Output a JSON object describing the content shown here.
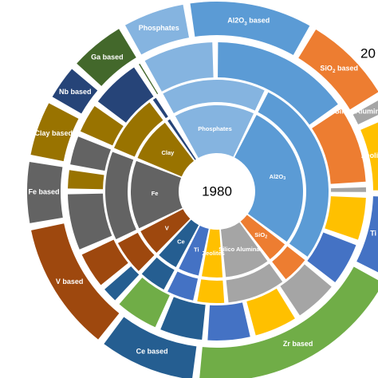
{
  "chart_data": {
    "type": "sunburst",
    "center_label": "1980",
    "partial_label": "20",
    "rings": [
      {
        "ring": "inner",
        "year": "1980",
        "segments": [
          {
            "label": "Phosphates",
            "value": 14.0,
            "color": "#85B4E0"
          },
          {
            "label": "Al2O3",
            "value": 25.0,
            "color": "#5B9BD5"
          },
          {
            "label": "SiO2",
            "value": 4.0,
            "color": "#ED7D31"
          },
          {
            "label": "Silico Alumina",
            "value": 8.0,
            "color": "#A5A5A5"
          },
          {
            "label": "Zeolites",
            "value": 4.0,
            "color": "#FFC000"
          },
          {
            "label": "Ti",
            "value": 4.0,
            "color": "#4472C4"
          },
          {
            "label": "Ce",
            "value": 4.0,
            "color": "#255E91"
          },
          {
            "label": "V",
            "value": 5.0,
            "color": "#9E480E"
          },
          {
            "label": "Fe",
            "value": 12.0,
            "color": "#636363"
          },
          {
            "label": "Clay",
            "value": 8.0,
            "color": "#997300"
          },
          {
            "label": "",
            "value": 1.0,
            "color": "#264478"
          },
          {
            "label": "",
            "value": 0.5,
            "color": "#43682B"
          }
        ]
      },
      {
        "ring": "middle",
        "segments": [
          {
            "label": "",
            "value": 14.0,
            "color": "#85B4E0"
          },
          {
            "label": "",
            "value": 25.0,
            "color": "#5B9BD5"
          },
          {
            "label": "",
            "value": 4.0,
            "color": "#ED7D31"
          },
          {
            "label": "",
            "value": 8.0,
            "color": "#A5A5A5"
          },
          {
            "label": "",
            "value": 4.0,
            "color": "#FFC000"
          },
          {
            "label": "",
            "value": 4.0,
            "color": "#4472C4"
          },
          {
            "label": "",
            "value": 4.0,
            "color": "#255E91"
          },
          {
            "label": "",
            "value": 5.0,
            "color": "#9E480E"
          },
          {
            "label": "",
            "value": 12.0,
            "color": "#636363"
          },
          {
            "label": "",
            "value": 8.0,
            "color": "#997300"
          },
          {
            "label": "",
            "value": 1.0,
            "color": "#264478"
          },
          {
            "label": "",
            "value": 0.5,
            "color": "#43682B"
          }
        ]
      },
      {
        "ring": "third",
        "segments": [
          {
            "label": "",
            "value": 11.0,
            "color": "#85B4E0"
          },
          {
            "label": "",
            "value": 21.0,
            "color": "#5B9BD5"
          },
          {
            "label": "",
            "value": 12.0,
            "color": "#ED7D31"
          },
          {
            "label": "",
            "value": 1.5,
            "color": "#A5A5A5"
          },
          {
            "label": "",
            "value": 7.0,
            "color": "#FFC000"
          },
          {
            "label": "",
            "value": 7.0,
            "color": "#4472C4"
          },
          {
            "label": "",
            "value": 7.0,
            "color": "#A5A5A5"
          },
          {
            "label": "",
            "value": 7.0,
            "color": "#FFC000"
          },
          {
            "label": "",
            "value": 7.0,
            "color": "#4472C4"
          },
          {
            "label": "",
            "value": 7.0,
            "color": "#255E91"
          },
          {
            "label": "",
            "value": 7.0,
            "color": "#70AD47"
          },
          {
            "label": "",
            "value": 3.0,
            "color": "#255E91"
          },
          {
            "label": "",
            "value": 6.0,
            "color": "#9E480E"
          },
          {
            "label": "",
            "value": 9.0,
            "color": "#636363"
          },
          {
            "label": "",
            "value": 3.5,
            "color": "#997300"
          },
          {
            "label": "",
            "value": 5.0,
            "color": "#636363"
          },
          {
            "label": "",
            "value": 5.0,
            "color": "#997300"
          },
          {
            "label": "",
            "value": 8.0,
            "color": "#264478"
          },
          {
            "label": "",
            "value": 1.0,
            "color": "#43682B"
          }
        ]
      },
      {
        "ring": "outer",
        "segments": [
          {
            "label": "Phosphates",
            "value": 10.0,
            "color": "#85B4E0"
          },
          {
            "label": "Al2O3 based",
            "value": 19.0,
            "color": "#5B9BD5"
          },
          {
            "label": "SiO2 based",
            "value": 14.0,
            "color": "#ED7D31"
          },
          {
            "label": "Silica Alumina based",
            "value": 3.0,
            "color": "#A5A5A5"
          },
          {
            "label": "Zeolites based",
            "value": 12.0,
            "color": "#FFC000"
          },
          {
            "label": "Ti based",
            "value": 13.0,
            "color": "#4472C4"
          },
          {
            "label": "Zr based",
            "value": 33.0,
            "color": "#70AD47"
          },
          {
            "label": "Ce based",
            "value": 15.0,
            "color": "#255E91"
          },
          {
            "label": "V based",
            "value": 20.0,
            "color": "#9E480E"
          },
          {
            "label": "Fe based",
            "value": 10.0,
            "color": "#636363"
          },
          {
            "label": "Clay based",
            "value": 9.0,
            "color": "#997300"
          },
          {
            "label": "Nb based",
            "value": 6.0,
            "color": "#264478"
          },
          {
            "label": "Ga based",
            "value": 9.0,
            "color": "#43682B"
          }
        ]
      }
    ]
  }
}
